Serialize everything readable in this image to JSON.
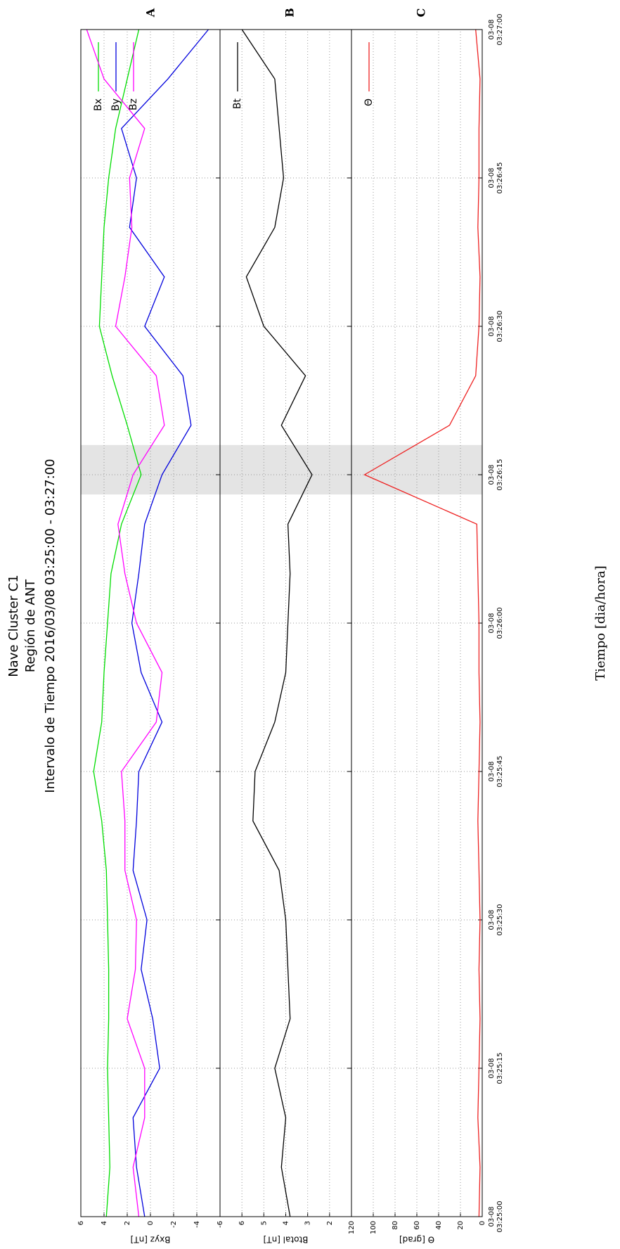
{
  "chart_data": {
    "type": "line",
    "title": [
      "Nave Cluster C1",
      "Región de ANT",
      "Intervalo de Tiempo 2016/03/08 03:25:00 - 03:27:00"
    ],
    "xlabel": "Tiempo [dia/hora]",
    "x": [
      "03-08 03:25:00",
      "03-08 03:25:05",
      "03-08 03:25:10",
      "03-08 03:25:15",
      "03-08 03:25:20",
      "03-08 03:25:25",
      "03-08 03:25:30",
      "03-08 03:25:35",
      "03-08 03:25:40",
      "03-08 03:25:45",
      "03-08 03:25:50",
      "03-08 03:25:55",
      "03-08 03:26:00",
      "03-08 03:26:05",
      "03-08 03:26:10",
      "03-08 03:26:15",
      "03-08 03:26:20",
      "03-08 03:26:25",
      "03-08 03:26:30",
      "03-08 03:26:35",
      "03-08 03:26:40",
      "03-08 03:26:45",
      "03-08 03:26:50",
      "03-08 03:26:55",
      "03-08 03:27:00"
    ],
    "xlim": [
      "03-08 03:25:00",
      "03-08 03:27:00"
    ],
    "xticks": [
      "03-08 03:25:00",
      "03-08 03:25:15",
      "03-08 03:25:30",
      "03-08 03:25:45",
      "03-08 03:26:00",
      "03-08 03:26:15",
      "03-08 03:26:30",
      "03-08 03:26:45",
      "03-08 03:27:00"
    ],
    "shaded_interval": [
      "03-08 03:26:13",
      "03-08 03:26:18"
    ],
    "grid": true,
    "panels": [
      {
        "label": "A",
        "ylabel": "Bxyz [nT]",
        "ylim": [
          -6,
          6
        ],
        "yticks": [
          -6,
          -4,
          -2,
          0,
          2,
          4,
          6
        ],
        "series": [
          {
            "name": "Bx",
            "color": "#00dd00",
            "values": [
              3.8,
              3.5,
              3.6,
              3.7,
              3.6,
              3.6,
              3.7,
              3.8,
              4.2,
              4.9,
              4.2,
              4.0,
              3.7,
              3.4,
              2.5,
              0.8,
              2.0,
              3.3,
              4.4,
              4.2,
              4.0,
              3.6,
              3.0,
              2.0,
              1.0
            ]
          },
          {
            "name": "By",
            "color": "#0000dd",
            "values": [
              0.5,
              1.2,
              1.5,
              -0.8,
              -0.2,
              0.8,
              0.3,
              1.5,
              1.2,
              1.0,
              -1.0,
              0.8,
              1.6,
              1.0,
              0.5,
              -1.0,
              -3.5,
              -2.8,
              0.5,
              -1.2,
              1.8,
              1.2,
              2.5,
              -1.5,
              -5.0
            ]
          },
          {
            "name": "Bz",
            "color": "#ff00ff",
            "values": [
              1.0,
              1.5,
              0.5,
              0.5,
              2.0,
              1.3,
              1.2,
              2.2,
              2.2,
              2.5,
              -0.5,
              -1.0,
              1.2,
              2.2,
              2.8,
              1.5,
              -1.2,
              -0.5,
              3.0,
              2.2,
              1.6,
              1.8,
              0.5,
              4.0,
              5.5
            ]
          }
        ]
      },
      {
        "label": "B",
        "ylabel": "Btotal [nT]",
        "ylim": [
          1,
          7
        ],
        "yticks": [
          2,
          3,
          4,
          5,
          6
        ],
        "series": [
          {
            "name": "Bt",
            "color": "#000000",
            "values": [
              3.8,
              4.2,
              4.0,
              4.5,
              3.8,
              3.9,
              4.0,
              4.3,
              5.5,
              5.4,
              4.5,
              4.0,
              3.9,
              3.8,
              3.9,
              2.8,
              4.2,
              3.1,
              5.0,
              5.8,
              4.5,
              4.1,
              4.3,
              4.5,
              6.0
            ]
          }
        ]
      },
      {
        "label": "C",
        "ylabel": "Θ [grad]",
        "ylim": [
          0,
          120
        ],
        "yticks": [
          0,
          20,
          40,
          60,
          80,
          100,
          120
        ],
        "series": [
          {
            "name": "Θ",
            "color": "#ee2222",
            "values": [
              3,
              2,
              4,
              3,
              2,
              3,
              2,
              3,
              4,
              3,
              2,
              3,
              3,
              4,
              5,
              108,
              30,
              6,
              3,
              2,
              4,
              3,
              3,
              2,
              6
            ]
          }
        ]
      }
    ]
  }
}
